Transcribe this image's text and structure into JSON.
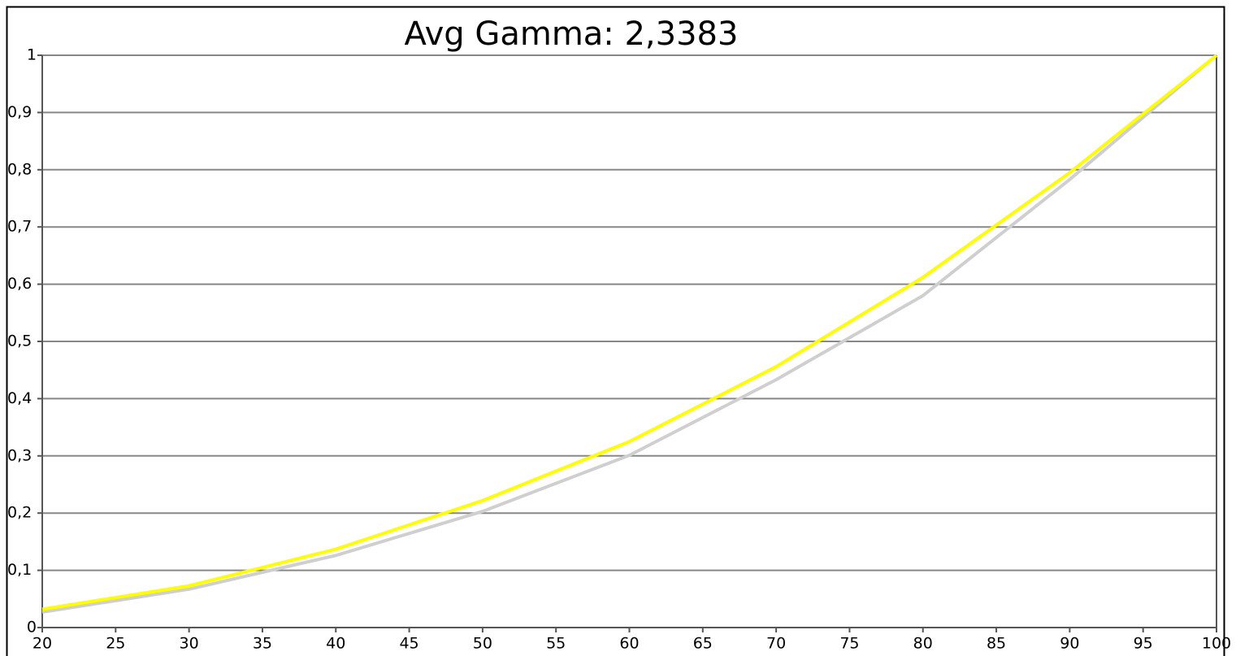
{
  "chart_data": {
    "type": "line",
    "title": "Avg Gamma: 2,3383",
    "x": [
      20,
      30,
      40,
      50,
      60,
      70,
      80,
      90,
      100
    ],
    "series": [
      {
        "color": "#cfcfcf",
        "values": [
          0.027,
          0.067,
          0.126,
          0.203,
          0.301,
          0.433,
          0.58,
          0.783,
          1.0
        ]
      },
      {
        "color": "#ffff00",
        "values": [
          0.032,
          0.073,
          0.137,
          0.222,
          0.325,
          0.456,
          0.612,
          0.795,
          1.0
        ]
      }
    ],
    "xlim": [
      20,
      100
    ],
    "xticks": [
      20,
      25,
      30,
      35,
      40,
      45,
      50,
      55,
      60,
      65,
      70,
      75,
      80,
      85,
      90,
      95,
      100
    ],
    "ylim": [
      0,
      1
    ],
    "yticks": [
      0,
      {
        "value": 0.1,
        "label": "0,1"
      },
      {
        "value": 0.2,
        "label": "0,2"
      },
      {
        "value": 0.3,
        "label": "0,3"
      },
      {
        "value": 0.4,
        "label": "0,4"
      },
      {
        "value": 0.5,
        "label": "0,5"
      },
      {
        "value": 0.6,
        "label": "0,6"
      },
      {
        "value": 0.7,
        "label": "0,7"
      },
      {
        "value": 0.8,
        "label": "0,8"
      },
      {
        "value": 0.9,
        "label": "0,9"
      },
      1
    ],
    "grid": true
  }
}
